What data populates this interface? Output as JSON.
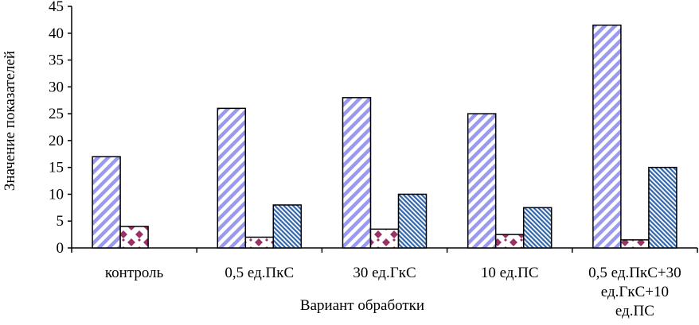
{
  "chart_data": {
    "type": "bar",
    "title": "",
    "xlabel": "Вариант обработки",
    "ylabel": "Значение показателей",
    "ylim": [
      0,
      45
    ],
    "yticks": [
      0,
      5,
      10,
      15,
      20,
      25,
      30,
      35,
      40,
      45
    ],
    "grid": false,
    "legend": "none",
    "categories": [
      [
        "контроль"
      ],
      [
        "0,5 ед.ПкС"
      ],
      [
        "30 ед.ГкС"
      ],
      [
        "10 ед.ПС"
      ],
      [
        "0,5 ед.ПкС+30",
        "ед.ГкС+10",
        "ед.ПС"
      ]
    ],
    "series": [
      {
        "pattern": "diagonal-stripes",
        "color": "#9999ee",
        "values": [
          17,
          26,
          28,
          25,
          41.5
        ]
      },
      {
        "pattern": "dots",
        "color": "#993366",
        "values": [
          4,
          2,
          3.5,
          2.5,
          1.5
        ]
      },
      {
        "pattern": "dense-hatch",
        "color": "#3366aa",
        "values": [
          0,
          8,
          10,
          7.5,
          15
        ]
      }
    ]
  }
}
